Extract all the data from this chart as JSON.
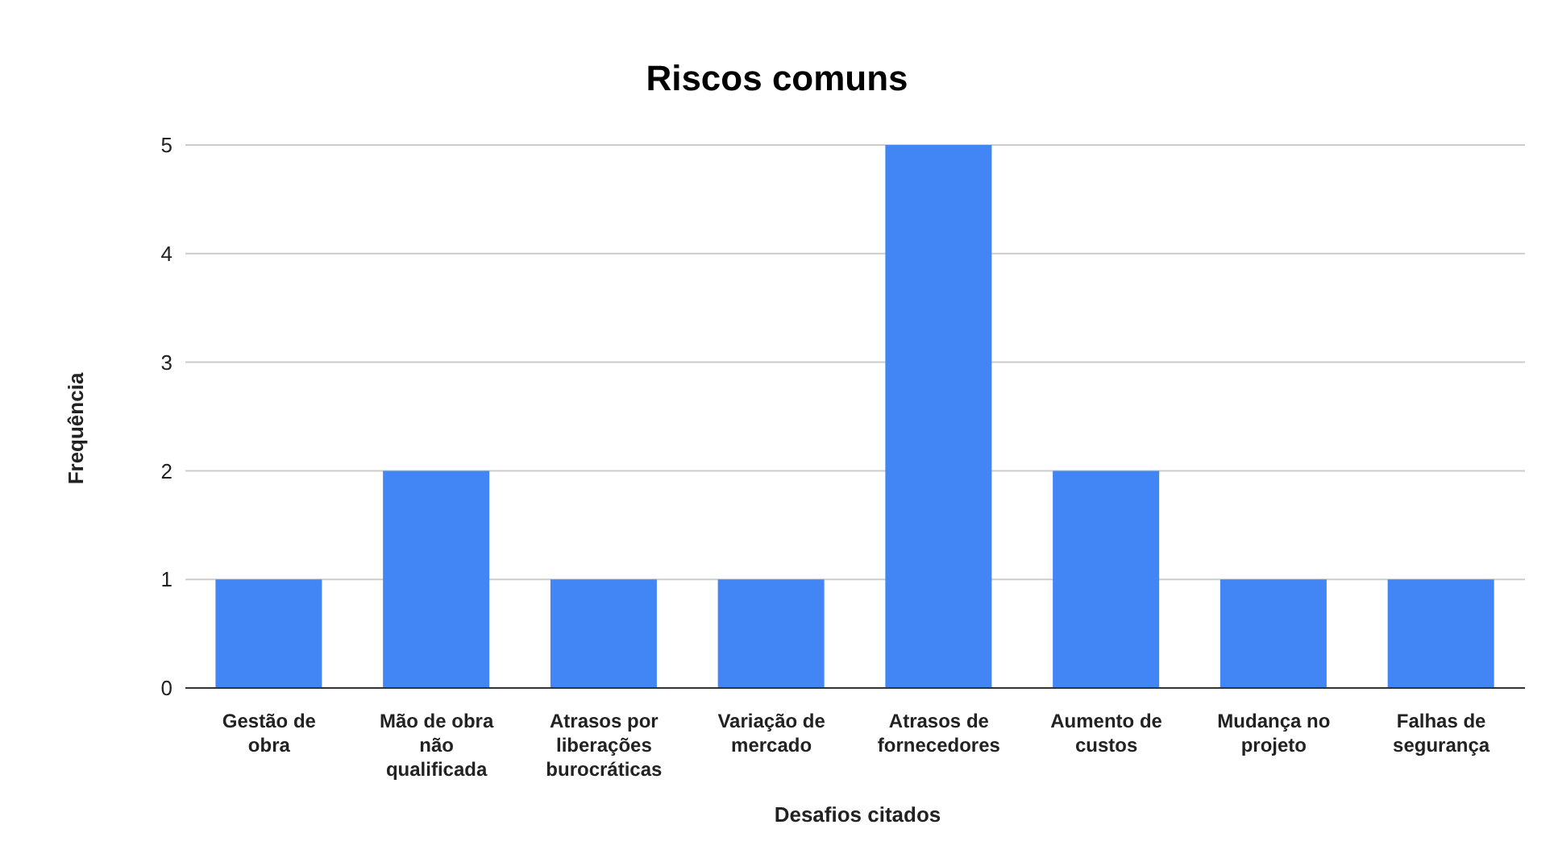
{
  "chart_data": {
    "type": "bar",
    "title": "Riscos comuns",
    "xlabel": "Desafios citados",
    "ylabel": "Frequência",
    "categories": [
      "Gestão de obra",
      "Mão de obra não qualificada",
      "Atrasos por liberações burocráticas",
      "Variação de mercado",
      "Atrasos de fornecedores",
      "Aumento de custos",
      "Mudança no projeto",
      "Falhas de segurança"
    ],
    "values": [
      1,
      2,
      1,
      1,
      5,
      2,
      1,
      1
    ],
    "color": "#4285f4",
    "ylim": [
      0,
      5
    ],
    "yticks": [
      0,
      1,
      2,
      3,
      4,
      5
    ],
    "grid": "y",
    "legend": false
  }
}
